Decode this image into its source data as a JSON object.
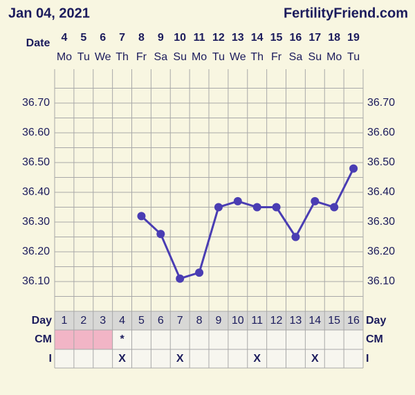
{
  "header": {
    "date": "Jan 04, 2021",
    "site": "FertilityFriend.com"
  },
  "chart_data": {
    "type": "line",
    "date_label": "Date",
    "categories": [
      "4",
      "5",
      "6",
      "7",
      "8",
      "9",
      "10",
      "11",
      "12",
      "13",
      "14",
      "15",
      "16",
      "17",
      "18",
      "19"
    ],
    "weekdays": [
      "Mo",
      "Tu",
      "We",
      "Th",
      "Fr",
      "Sa",
      "Su",
      "Mo",
      "Tu",
      "We",
      "Th",
      "Fr",
      "Sa",
      "Su",
      "Mo",
      "Tu"
    ],
    "series": [
      {
        "name": "Temperature",
        "color": "#4a3db3",
        "values": [
          null,
          null,
          null,
          null,
          36.32,
          36.26,
          36.11,
          36.13,
          36.35,
          36.37,
          36.35,
          36.35,
          36.25,
          36.37,
          36.35,
          36.48
        ]
      }
    ],
    "ylim": [
      36.0,
      36.8
    ],
    "yticks": [
      {
        "value": 36.1,
        "label": "36.10"
      },
      {
        "value": 36.2,
        "label": "36.20"
      },
      {
        "value": 36.3,
        "label": "36.30"
      },
      {
        "value": 36.4,
        "label": "36.40"
      },
      {
        "value": 36.5,
        "label": "36.50"
      },
      {
        "value": 36.6,
        "label": "36.60"
      },
      {
        "value": 36.7,
        "label": "36.70"
      }
    ],
    "grid": true
  },
  "cycle_table": {
    "day_label": "Day",
    "days": [
      "1",
      "2",
      "3",
      "4",
      "5",
      "6",
      "7",
      "8",
      "9",
      "10",
      "11",
      "12",
      "13",
      "14",
      "15",
      "16"
    ],
    "cm_label": "CM",
    "cm": [
      null,
      null,
      null,
      "*",
      null,
      null,
      null,
      null,
      null,
      null,
      null,
      null,
      null,
      null,
      null,
      null
    ],
    "cm_colors": [
      "#f2b5c6",
      "#f2b5c6",
      "#f2b5c6",
      null,
      null,
      null,
      null,
      null,
      null,
      null,
      null,
      null,
      null,
      null,
      null,
      null
    ],
    "i_label": "I",
    "intercourse": [
      null,
      null,
      null,
      "X",
      null,
      null,
      "X",
      null,
      null,
      null,
      "X",
      null,
      null,
      "X",
      null,
      null
    ]
  }
}
